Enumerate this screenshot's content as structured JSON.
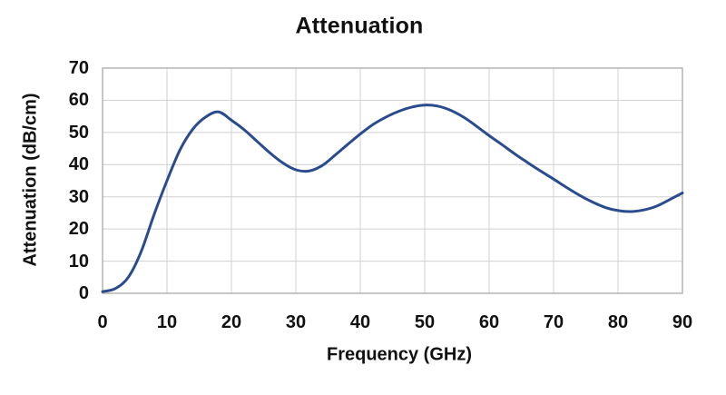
{
  "chart": {
    "title": "Attenuation",
    "xlabel": "Frequency (GHz)",
    "ylabel": "Attenuation (dB/cm)"
  },
  "chart_data": {
    "type": "line",
    "title": "Attenuation",
    "xlabel": "Frequency (GHz)",
    "ylabel": "Attenuation (dB/cm)",
    "xlim": [
      0,
      90
    ],
    "ylim": [
      0,
      70
    ],
    "x_ticks": [
      0,
      10,
      20,
      30,
      40,
      50,
      60,
      70,
      80,
      90
    ],
    "y_ticks": [
      0,
      10,
      20,
      30,
      40,
      50,
      60,
      70
    ],
    "grid": true,
    "legend": "none",
    "line_color": "#2a4b8d",
    "grid_color": "#d0d0d0",
    "axis_color": "#a9a9a9",
    "text_color": "#111111",
    "series": [
      {
        "name": "attenuation",
        "x": [
          0,
          2,
          4,
          6,
          8,
          10,
          12,
          14,
          16,
          18,
          20,
          22,
          24,
          26,
          28,
          30,
          32,
          34,
          36,
          38,
          40,
          42,
          44,
          46,
          48,
          50,
          52,
          54,
          56,
          58,
          60,
          62,
          64,
          66,
          68,
          70,
          72,
          74,
          76,
          78,
          80,
          82,
          84,
          86,
          88,
          90
        ],
        "y": [
          0.5,
          1.5,
          5,
          13,
          24.5,
          35,
          44.5,
          51,
          54.8,
          56.4,
          53.8,
          50.8,
          47.2,
          43.6,
          40.5,
          38.4,
          38.0,
          39.6,
          42.8,
          46.2,
          49.5,
          52.5,
          54.8,
          56.6,
          57.9,
          58.5,
          58.2,
          56.9,
          54.8,
          52,
          49,
          46.2,
          43.3,
          40.6,
          38,
          35.5,
          32.9,
          30.5,
          28.4,
          26.7,
          25.7,
          25.4,
          25.9,
          27.1,
          29.1,
          31.2
        ]
      }
    ]
  }
}
